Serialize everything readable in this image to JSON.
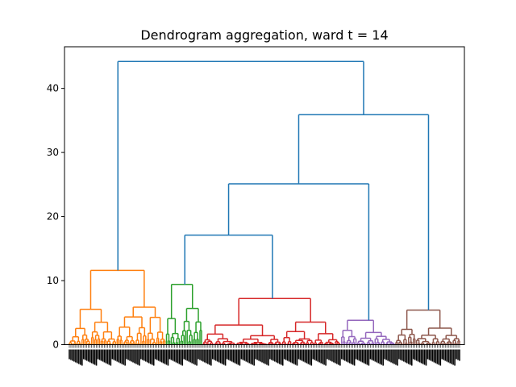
{
  "chart_data": {
    "type": "dendrogram",
    "title": "Dendrogram aggregation, ward t = 14",
    "xlabel": "",
    "ylabel": "",
    "ylim": [
      0,
      46.5
    ],
    "yticks": [
      0,
      10,
      20,
      30,
      40
    ],
    "leaf_count": 246,
    "leaf_labels_note": "",
    "link_colors": {
      "C0": "#1f77b4",
      "C1": "#ff7f0e",
      "C2": "#2ca02c",
      "C3": "#d62728",
      "C4": "#9467bd",
      "C5": "#8c564b"
    },
    "clusters": [
      {
        "color": "C1",
        "xrange": [
          0,
          61
        ],
        "merge_height": 11.6
      },
      {
        "color": "C2",
        "xrange": [
          61,
          84
        ],
        "merge_height": 9.4
      },
      {
        "color": "C3",
        "xrange": [
          84,
          171
        ],
        "merge_height": 7.2
      },
      {
        "color": "C4",
        "xrange": [
          171,
          205
        ],
        "merge_height": 3.8
      },
      {
        "color": "C5",
        "xrange": [
          205,
          246
        ],
        "merge_height": 5.4
      }
    ],
    "upper_links": [
      {
        "label": "merge-green-red",
        "left_x": 72.5,
        "right_x": 127.5,
        "height": 17.1,
        "left_h": 9.4,
        "right_h": 7.2
      },
      {
        "label": "merge-gr-purple",
        "left_x": 100,
        "right_x": 188,
        "height": 25.1,
        "left_h": 17.1,
        "right_h": 3.8
      },
      {
        "label": "merge-grp-brown",
        "left_x": 144,
        "right_x": 225.5,
        "height": 35.9,
        "left_h": 25.1,
        "right_h": 5.4
      },
      {
        "label": "root",
        "left_x": 30.5,
        "right_x": 184.75,
        "height": 44.2,
        "left_h": 11.6,
        "right_h": 35.9
      }
    ],
    "grid": false,
    "legend": "none"
  }
}
